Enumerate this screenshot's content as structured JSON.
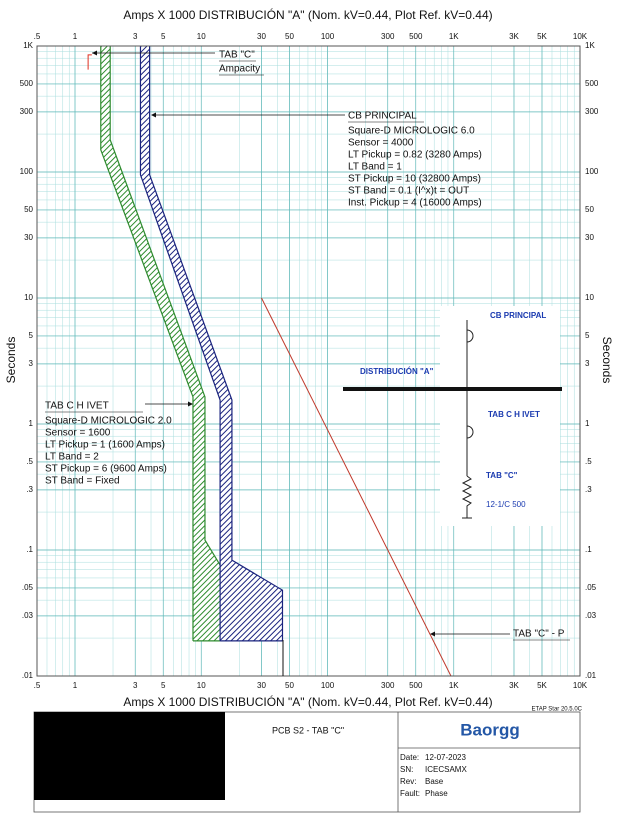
{
  "chart_data": {
    "type": "line",
    "title": "Amps  X  1000   DISTRIBUCIÓN \"A\" (Nom. kV=0.44, Plot Ref. kV=0.44)",
    "y_label": "Seconds",
    "xscale": "log",
    "yscale": "log",
    "xlim": [
      0.5,
      10000
    ],
    "ylim": [
      0.01,
      1000
    ],
    "xticks": [
      {
        "value": 0.5,
        "label": ".5"
      },
      1,
      3,
      5,
      10,
      30,
      50,
      100,
      300,
      500,
      {
        "value": 1000,
        "label": "1K"
      },
      {
        "value": 3000,
        "label": "3K"
      },
      {
        "value": 5000,
        "label": "5K"
      },
      {
        "value": 10000,
        "label": "10K"
      }
    ],
    "yticks": [
      {
        "value": 0.01,
        "label": ".01"
      },
      {
        "value": 0.03,
        "label": ".03"
      },
      {
        "value": 0.05,
        "label": ".05"
      },
      {
        "value": 0.1,
        "label": ".1"
      },
      {
        "value": 0.3,
        "label": ".3"
      },
      {
        "value": 0.5,
        "label": ".5"
      },
      1,
      3,
      5,
      10,
      30,
      50,
      100,
      300,
      500,
      {
        "value": 1000,
        "label": "1K"
      }
    ],
    "grid": true,
    "series": [
      {
        "style": "band",
        "color": "#2e8b2e",
        "lower": {
          "x": [
            1.6,
            1.6,
            8.6,
            8.6
          ],
          "y": [
            1000,
            150,
            1.64,
            0.019
          ]
        },
        "upper": {
          "x": [
            1.9,
            1.9,
            10.7,
            10.7,
            14.1,
            14.1
          ],
          "y": [
            1000,
            180,
            1.64,
            0.12,
            0.076,
            0.019
          ]
        }
      },
      {
        "style": "band",
        "color": "#1a237e",
        "lower": {
          "x": [
            3.3,
            3.3,
            14.1,
            14.1
          ],
          "y": [
            1000,
            95,
            1.55,
            0.019
          ]
        },
        "upper": {
          "x": [
            3.9,
            3.9,
            17.5,
            17.5,
            44,
            44
          ],
          "y": [
            1000,
            95,
            1.55,
            0.083,
            0.048,
            0.019
          ]
        }
      },
      {
        "style": "line",
        "color": "#c0392b",
        "x": [
          30,
          950
        ],
        "y": [
          10,
          0.01
        ]
      },
      {
        "style": "line",
        "color": "#e03020",
        "x": [
          1.27,
          1.27,
          1.36
        ],
        "y": [
          650,
          850,
          850
        ]
      }
    ],
    "annotations": {
      "ampacity": [
        "TAB \"C\"",
        "Ampacity"
      ],
      "cb_principal": [
        "CB PRINCIPAL",
        "Square-D  MICROLOGIC 6.0",
        "Sensor = 4000",
        "LT Pickup = 0.82 (3280 Amps)",
        "LT Band = 1",
        "ST Pickup = 10 (32800 Amps)",
        "ST Band = 0.1  (I^x)t = OUT",
        "Inst. Pickup = 4 (16000 Amps)"
      ],
      "tab_ivet": [
        "TAB C H IVET",
        "Square-D  MICROLOGIC 2.0",
        "Sensor = 1600",
        "LT Pickup = 1 (1600 Amps)",
        "LT Band = 2",
        "ST Pickup = 6 (9600 Amps)",
        "ST Band = Fixed"
      ],
      "tab_c_p": "TAB \"C\" - P"
    }
  },
  "one_line_diagram": {
    "breaker_top": "CB PRINCIPAL",
    "bus": "DISTRIBUCIÓN \"A\"",
    "breaker_bottom": "TAB C H IVET",
    "cable": "TAB \"C\"",
    "cable_size": "12-1/C 500"
  },
  "title_block": {
    "software": "ETAP Star 20.5.0C",
    "drawing": "PCB S2 - TAB \"C\"",
    "logo": "Baorgg",
    "fields": [
      {
        "label": "Date:",
        "value": "12-07-2023"
      },
      {
        "label": "SN:",
        "value": "ICECSAMX"
      },
      {
        "label": "Rev:",
        "value": "Base"
      },
      {
        "label": "Fault:",
        "value": "Phase"
      }
    ]
  }
}
